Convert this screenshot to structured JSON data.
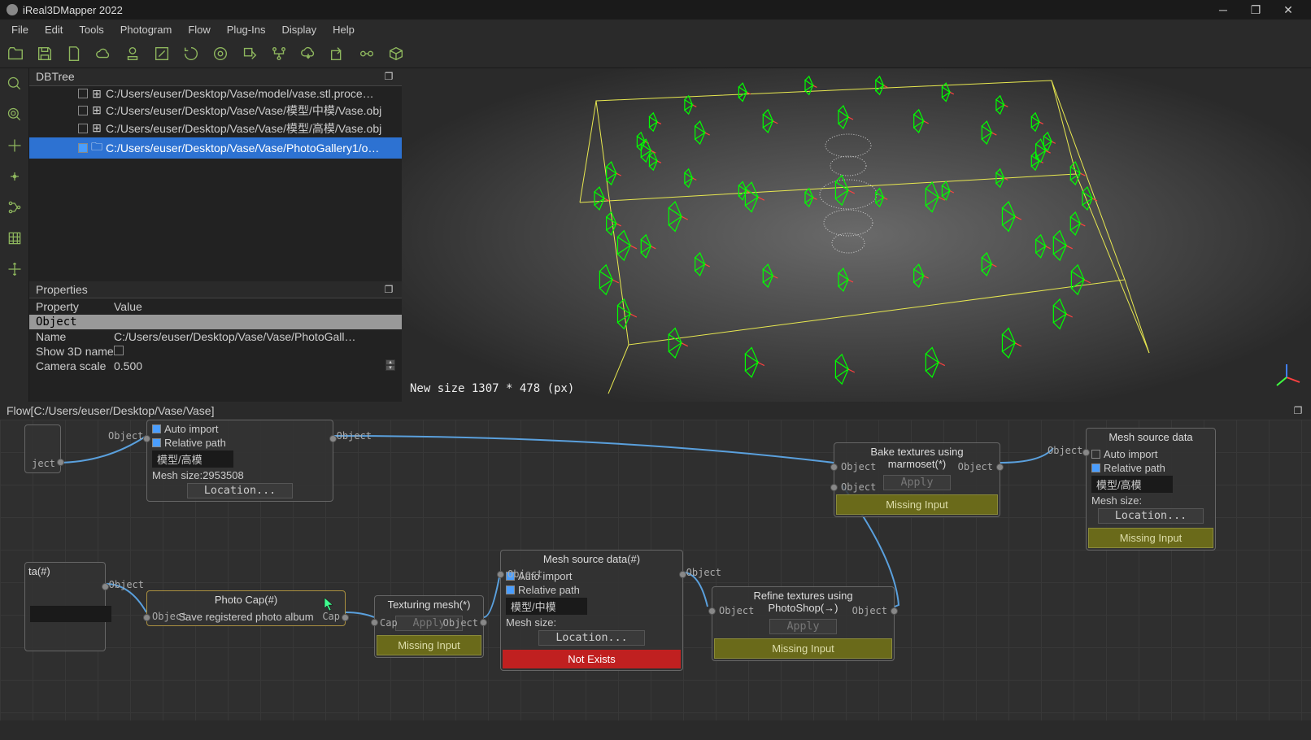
{
  "app": {
    "title": "iReal3DMapper 2022"
  },
  "menubar": [
    "File",
    "Edit",
    "Tools",
    "Photogram",
    "Flow",
    "Plug-Ins",
    "Display",
    "Help"
  ],
  "dbtree": {
    "title": "DBTree",
    "items": [
      {
        "checked": false,
        "icon": "⊞",
        "label": "C:/Users/euser/Desktop/Vase/model/vase.stl.proce…",
        "selected": false
      },
      {
        "checked": false,
        "icon": "⊞",
        "label": "C:/Users/euser/Desktop/Vase/Vase/模型/中模/Vase.obj",
        "selected": false
      },
      {
        "checked": false,
        "icon": "⊞",
        "label": "C:/Users/euser/Desktop/Vase/Vase/模型/高模/Vase.obj",
        "selected": false
      },
      {
        "checked": true,
        "icon": "🗀",
        "label": "C:/Users/euser/Desktop/Vase/Vase/PhotoGallery1/o…",
        "selected": true
      }
    ]
  },
  "properties": {
    "title": "Properties",
    "col_property": "Property",
    "col_value": "Value",
    "group": "Object",
    "rows": [
      {
        "label": "Name",
        "value": "C:/Users/euser/Desktop/Vase/Vase/PhotoGall…"
      },
      {
        "label": "Show 3D name",
        "value_checkbox": true,
        "checked": false
      },
      {
        "label": "Camera scale",
        "value": "0.500",
        "spinner": true
      }
    ]
  },
  "viewport": {
    "status": "New size 1307 * 478 (px)",
    "box_color": "#e8e850",
    "camera_color": "#00ff00",
    "accent_color": "#ff4040"
  },
  "flow": {
    "title": "Flow[C:/Users/euser/Desktop/Vase/Vase]",
    "wire_color": "#5aa0dd",
    "labels": {
      "object": "Object",
      "cap": "Cap",
      "ject": "ject",
      "ta": "ta(#)",
      "auto_import": "Auto import",
      "relative_path": "Relative path",
      "location": "Location...",
      "apply": "Apply",
      "missing": "Missing Input",
      "notexists": "Not Exists",
      "mesh_size": "Mesh size:",
      "mesh_size_val": "Mesh size:2953508",
      "mesh_source1": "Mesh source data(#)",
      "mesh_source2": "Mesh source data",
      "path1": "模型/高模",
      "path2": "模型/中模",
      "photo_cap": "Photo Cap(#)",
      "save_album": "Save registered photo album",
      "texturing": "Texturing mesh(*)",
      "bake": "Bake textures using marmoset(*)",
      "refine": "Refine textures using PhotoShop(→)"
    }
  },
  "colors": {
    "bg": "#2a2a2a",
    "panel": "#222222",
    "accent_green": "#8fb85e",
    "selection": "#2d72d2",
    "warn_bg": "#6a6a1a",
    "error_bg": "#c02020"
  }
}
